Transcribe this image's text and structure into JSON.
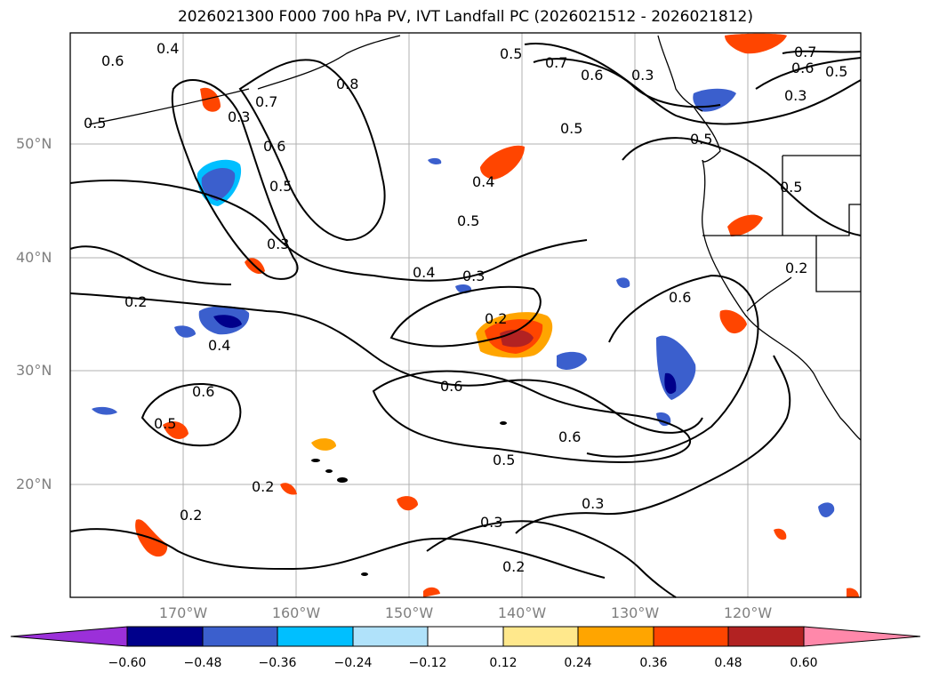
{
  "title": "2026021300 F000 700 hPa PV, IVT Landfall PC (2026021512 - 2026021812)",
  "lat_labels": [
    "50°N",
    "40°N",
    "30°N",
    "20°N"
  ],
  "lon_labels": [
    "170°W",
    "160°W",
    "150°W",
    "140°W",
    "130°W",
    "120°W"
  ],
  "colorbar": {
    "tick_labels": [
      "−0.60",
      "−0.48",
      "−0.36",
      "−0.24",
      "−0.12",
      "0.12",
      "0.24",
      "0.36",
      "0.48",
      "0.60"
    ],
    "colors": [
      "#9b30d9",
      "#00008b",
      "#3b5fcd",
      "#00bfff",
      "#b0e2fa",
      "#ffffff",
      "#ffe88c",
      "#ffa500",
      "#ff4500",
      "#b22222",
      "#ff88aa"
    ]
  },
  "contour_labels": [
    "0.6",
    "0.4",
    "0.5",
    "0.3",
    "0.7",
    "0.6",
    "0.5",
    "0.3",
    "0.8",
    "0.5",
    "0.7",
    "0.6",
    "0.3",
    "0.4",
    "0.5",
    "0.5",
    "0.5",
    "0.5",
    "0.4",
    "0.3",
    "0.2",
    "0.6",
    "0.2",
    "0.4",
    "0.2",
    "0.6",
    "0.6",
    "0.5",
    "0.6",
    "0.5",
    "0.2",
    "0.2",
    "0.3",
    "0.3",
    "0.2",
    "0.7",
    "0.6",
    "0.5",
    "0.3"
  ]
}
